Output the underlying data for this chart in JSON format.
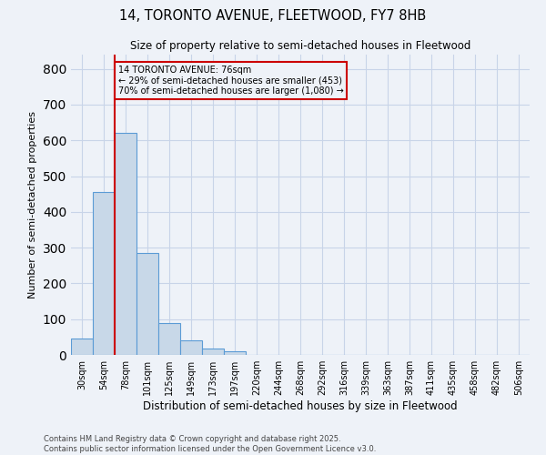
{
  "title_line1": "14, TORONTO AVENUE, FLEETWOOD, FY7 8HB",
  "title_line2": "Size of property relative to semi-detached houses in Fleetwood",
  "xlabel": "Distribution of semi-detached houses by size in Fleetwood",
  "ylabel": "Number of semi-detached properties",
  "footnote": "Contains HM Land Registry data © Crown copyright and database right 2025.\nContains public sector information licensed under the Open Government Licence v3.0.",
  "bins": [
    "30sqm",
    "54sqm",
    "78sqm",
    "101sqm",
    "125sqm",
    "149sqm",
    "173sqm",
    "197sqm",
    "220sqm",
    "244sqm",
    "268sqm",
    "292sqm",
    "316sqm",
    "339sqm",
    "363sqm",
    "387sqm",
    "411sqm",
    "435sqm",
    "458sqm",
    "482sqm",
    "506sqm"
  ],
  "values": [
    45,
    455,
    620,
    285,
    90,
    40,
    18,
    10,
    0,
    0,
    0,
    0,
    0,
    0,
    0,
    0,
    0,
    0,
    0,
    0,
    0
  ],
  "bar_color": "#c8d8e8",
  "bar_edge_color": "#5b9bd5",
  "red_line_bin_index": 2,
  "annotation_text": "14 TORONTO AVENUE: 76sqm\n← 29% of semi-detached houses are smaller (453)\n70% of semi-detached houses are larger (1,080) →",
  "annotation_box_color": "#cc0000",
  "ylim": [
    0,
    840
  ],
  "yticks": [
    0,
    100,
    200,
    300,
    400,
    500,
    600,
    700,
    800
  ],
  "grid_color": "#c8d4e8",
  "bg_color": "#eef2f8"
}
